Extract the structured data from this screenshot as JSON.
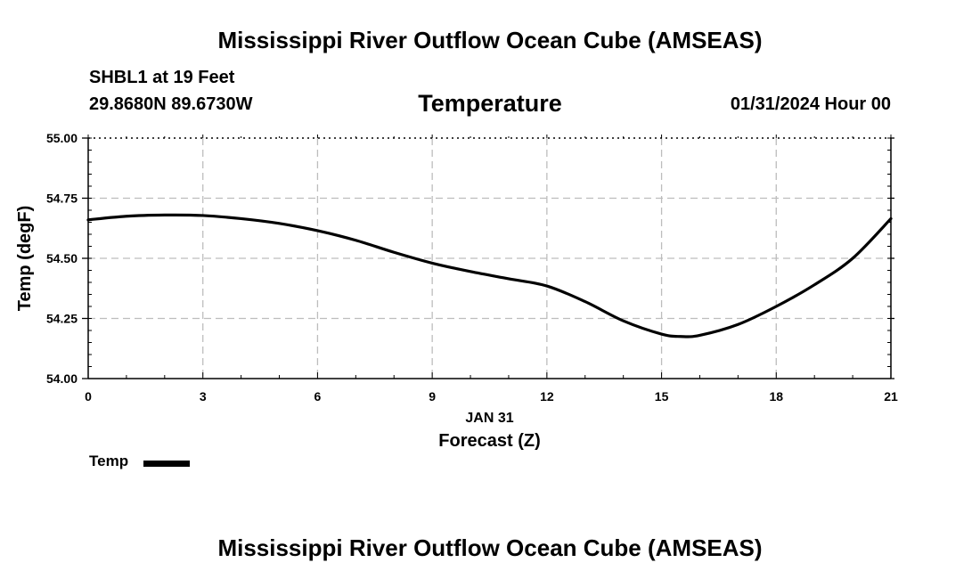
{
  "header": {
    "title_top": "Mississippi River Outflow Ocean Cube (AMSEAS)",
    "station": "SHBL1 at 19 Feet",
    "coords": "29.8680N  89.6730W",
    "variable": "Temperature",
    "datetime": "01/31/2024 Hour 00"
  },
  "legend": {
    "label": "Temp",
    "color": "#000000"
  },
  "footer": {
    "title_bottom": "Mississippi River Outflow Ocean Cube (AMSEAS)"
  },
  "chart_data": {
    "type": "line",
    "title": "Temperature",
    "xlabel": "Forecast (Z)",
    "xlabel_date": "JAN 31",
    "ylabel": "Temp (degF)",
    "xlim": [
      0,
      21
    ],
    "ylim": [
      54.0,
      55.0
    ],
    "x_ticks": [
      0,
      3,
      6,
      9,
      12,
      15,
      18,
      21
    ],
    "y_ticks": [
      54.0,
      54.25,
      54.5,
      54.75,
      55.0
    ],
    "y_tick_labels": [
      "54.00",
      "54.25",
      "54.50",
      "54.75",
      "55.00"
    ],
    "grid": true,
    "series": [
      {
        "name": "Temp",
        "color": "#000000",
        "x": [
          0,
          1,
          2,
          3,
          4,
          5,
          6,
          7,
          8,
          9,
          10,
          11,
          12,
          13,
          14,
          15,
          15.5,
          16,
          17,
          18,
          19,
          20,
          21
        ],
        "values": [
          54.66,
          54.675,
          54.68,
          54.678,
          54.665,
          54.645,
          54.615,
          54.575,
          54.525,
          54.48,
          54.445,
          54.415,
          54.385,
          54.32,
          54.24,
          54.185,
          54.175,
          54.18,
          54.225,
          54.3,
          54.39,
          54.5,
          54.665
        ]
      }
    ]
  }
}
